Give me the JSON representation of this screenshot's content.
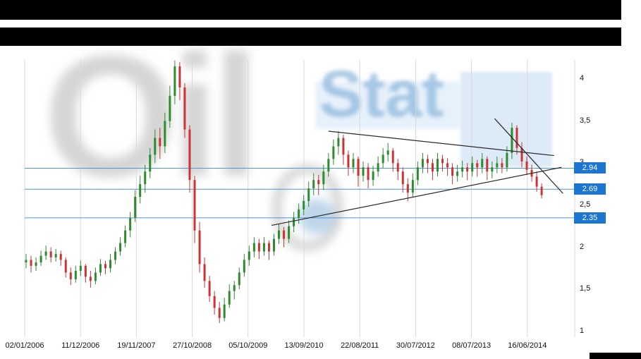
{
  "watermark": {
    "word1": "Oil",
    "word2": "Stat"
  },
  "colors": {
    "candle_up": "#2e8b2e",
    "candle_down": "#cc3333",
    "grid": "#d9d9d9",
    "level_line": "#4f94d6",
    "level_label_background": "#1b75d1",
    "level_label_text": "#ffffff",
    "trendline": "#2a2a2a",
    "axis_text": "#111111",
    "header_bar": "#000000"
  },
  "chart_data": {
    "type": "candlestick",
    "title": "",
    "interval": "monthly",
    "grid": "vertical-only",
    "legend": "none",
    "ylim": [
      1.0,
      4.25
    ],
    "x_tick_labels": [
      "02/01/2006",
      "11/12/2006",
      "19/11/2007",
      "27/10/2008",
      "05/10/2009",
      "13/09/2010",
      "22/08/2011",
      "30/07/2012",
      "08/07/2013",
      "16/06/2014"
    ],
    "y_ticks": [
      {
        "label": "4",
        "value": 4
      },
      {
        "label": "3,5",
        "value": 3.5
      },
      {
        "label": "3",
        "value": 3
      },
      {
        "label": "2,5",
        "value": 2.5
      },
      {
        "label": "2",
        "value": 2
      },
      {
        "label": "1,5",
        "value": 1.5
      },
      {
        "label": "1",
        "value": 1
      }
    ],
    "levels": [
      {
        "label": "2.94",
        "value": 2.94
      },
      {
        "label": "2.69",
        "value": 2.69
      },
      {
        "label": "2.35",
        "value": 2.35
      }
    ],
    "trendlines": [
      {
        "from": {
          "month_index": 61,
          "price": 3.38
        },
        "to": {
          "month_index": 106.5,
          "price": 3.09
        }
      },
      {
        "from": {
          "month_index": 49.5,
          "price": 2.26
        },
        "to": {
          "month_index": 108,
          "price": 2.95
        }
      },
      {
        "from": {
          "month_index": 94.5,
          "price": 3.53
        },
        "to": {
          "month_index": 108.3,
          "price": 2.64
        }
      }
    ],
    "ohlc_columns": [
      "open",
      "high",
      "low",
      "close"
    ],
    "ohlc": [
      [
        1.82,
        1.92,
        1.75,
        1.85
      ],
      [
        1.85,
        1.9,
        1.7,
        1.78
      ],
      [
        1.78,
        1.88,
        1.72,
        1.82
      ],
      [
        1.82,
        1.96,
        1.78,
        1.9
      ],
      [
        1.9,
        2.02,
        1.85,
        1.95
      ],
      [
        1.95,
        2.0,
        1.82,
        1.88
      ],
      [
        1.88,
        1.98,
        1.83,
        1.92
      ],
      [
        1.92,
        1.96,
        1.78,
        1.85
      ],
      [
        1.85,
        1.88,
        1.64,
        1.7
      ],
      [
        1.7,
        1.76,
        1.55,
        1.62
      ],
      [
        1.62,
        1.78,
        1.58,
        1.72
      ],
      [
        1.72,
        1.84,
        1.66,
        1.78
      ],
      [
        1.78,
        1.8,
        1.58,
        1.65
      ],
      [
        1.65,
        1.72,
        1.52,
        1.6
      ],
      [
        1.6,
        1.76,
        1.56,
        1.7
      ],
      [
        1.7,
        1.86,
        1.66,
        1.8
      ],
      [
        1.8,
        1.84,
        1.68,
        1.75
      ],
      [
        1.75,
        1.92,
        1.7,
        1.85
      ],
      [
        1.85,
        2.0,
        1.8,
        1.95
      ],
      [
        1.95,
        2.12,
        1.9,
        2.05
      ],
      [
        2.05,
        2.26,
        2.0,
        2.2
      ],
      [
        2.2,
        2.42,
        2.12,
        2.35
      ],
      [
        2.35,
        2.68,
        2.3,
        2.6
      ],
      [
        2.6,
        2.85,
        2.52,
        2.75
      ],
      [
        2.75,
        2.98,
        2.65,
        2.9
      ],
      [
        2.9,
        3.18,
        2.82,
        3.1
      ],
      [
        3.1,
        3.4,
        3.0,
        3.3
      ],
      [
        3.3,
        3.42,
        3.05,
        3.2
      ],
      [
        3.2,
        3.6,
        3.12,
        3.5
      ],
      [
        3.5,
        3.92,
        3.42,
        3.8
      ],
      [
        3.8,
        4.22,
        3.7,
        4.15
      ],
      [
        4.15,
        4.2,
        3.75,
        3.9
      ],
      [
        3.9,
        3.95,
        3.3,
        3.4
      ],
      [
        3.4,
        3.45,
        2.65,
        2.8
      ],
      [
        2.8,
        2.85,
        2.05,
        2.2
      ],
      [
        2.2,
        2.3,
        1.7,
        1.8
      ],
      [
        1.8,
        1.88,
        1.52,
        1.6
      ],
      [
        1.6,
        1.66,
        1.35,
        1.42
      ],
      [
        1.42,
        1.48,
        1.2,
        1.28
      ],
      [
        1.28,
        1.35,
        1.1,
        1.16
      ],
      [
        1.16,
        1.4,
        1.12,
        1.32
      ],
      [
        1.32,
        1.56,
        1.28,
        1.48
      ],
      [
        1.48,
        1.6,
        1.38,
        1.55
      ],
      [
        1.55,
        1.76,
        1.5,
        1.7
      ],
      [
        1.7,
        1.92,
        1.65,
        1.85
      ],
      [
        1.85,
        2.02,
        1.78,
        1.95
      ],
      [
        1.95,
        2.12,
        1.88,
        2.05
      ],
      [
        2.05,
        2.1,
        1.86,
        1.95
      ],
      [
        1.95,
        2.12,
        1.9,
        2.05
      ],
      [
        2.05,
        2.08,
        1.85,
        1.95
      ],
      [
        1.95,
        2.16,
        1.9,
        2.1
      ],
      [
        2.1,
        2.28,
        2.04,
        2.2
      ],
      [
        2.2,
        2.24,
        2.0,
        2.1
      ],
      [
        2.1,
        2.32,
        2.05,
        2.25
      ],
      [
        2.25,
        2.42,
        2.18,
        2.35
      ],
      [
        2.35,
        2.52,
        2.28,
        2.45
      ],
      [
        2.45,
        2.62,
        2.38,
        2.55
      ],
      [
        2.55,
        2.78,
        2.48,
        2.7
      ],
      [
        2.7,
        2.88,
        2.62,
        2.8
      ],
      [
        2.8,
        2.86,
        2.62,
        2.75
      ],
      [
        2.75,
        2.98,
        2.68,
        2.9
      ],
      [
        2.9,
        3.12,
        2.84,
        3.05
      ],
      [
        3.05,
        3.28,
        2.98,
        3.2
      ],
      [
        3.2,
        3.38,
        3.1,
        3.3
      ],
      [
        3.3,
        3.34,
        2.98,
        3.1
      ],
      [
        3.1,
        3.15,
        2.85,
        2.95
      ],
      [
        2.95,
        3.12,
        2.88,
        3.05
      ],
      [
        3.05,
        3.08,
        2.72,
        2.85
      ],
      [
        2.85,
        3.02,
        2.78,
        2.95
      ],
      [
        2.95,
        3.0,
        2.7,
        2.8
      ],
      [
        2.8,
        2.97,
        2.73,
        2.9
      ],
      [
        2.9,
        3.08,
        2.84,
        3.0
      ],
      [
        3.0,
        3.18,
        2.94,
        3.1
      ],
      [
        3.1,
        3.24,
        3.02,
        3.15
      ],
      [
        3.15,
        3.18,
        2.9,
        3.0
      ],
      [
        3.0,
        3.05,
        2.8,
        2.9
      ],
      [
        2.9,
        2.95,
        2.65,
        2.75
      ],
      [
        2.75,
        2.82,
        2.55,
        2.65
      ],
      [
        2.65,
        2.88,
        2.6,
        2.8
      ],
      [
        2.8,
        3.02,
        2.74,
        2.95
      ],
      [
        2.95,
        3.12,
        2.88,
        3.05
      ],
      [
        3.05,
        3.1,
        2.88,
        3.0
      ],
      [
        3.0,
        3.05,
        2.8,
        2.9
      ],
      [
        2.9,
        3.12,
        2.84,
        3.05
      ],
      [
        3.05,
        3.1,
        2.9,
        3.0
      ],
      [
        3.0,
        3.06,
        2.85,
        2.95
      ],
      [
        2.95,
        3.0,
        2.75,
        2.85
      ],
      [
        2.85,
        2.98,
        2.78,
        2.9
      ],
      [
        2.9,
        3.03,
        2.83,
        2.95
      ],
      [
        2.95,
        3.0,
        2.8,
        2.9
      ],
      [
        2.9,
        3.08,
        2.84,
        3.0
      ],
      [
        3.0,
        3.04,
        2.84,
        2.95
      ],
      [
        2.95,
        3.12,
        2.88,
        3.05
      ],
      [
        3.05,
        3.08,
        2.8,
        2.9
      ],
      [
        2.9,
        3.02,
        2.82,
        2.95
      ],
      [
        2.95,
        3.08,
        2.88,
        3.0
      ],
      [
        3.0,
        3.06,
        2.88,
        2.95
      ],
      [
        2.95,
        3.2,
        2.9,
        3.12
      ],
      [
        3.12,
        3.48,
        3.05,
        3.42
      ],
      [
        3.42,
        3.45,
        3.1,
        3.18
      ],
      [
        3.18,
        3.25,
        2.95,
        3.02
      ],
      [
        3.02,
        3.08,
        2.86,
        2.92
      ],
      [
        2.92,
        2.98,
        2.78,
        2.84
      ],
      [
        2.84,
        2.9,
        2.66,
        2.72
      ],
      [
        2.72,
        2.76,
        2.58,
        2.62
      ]
    ]
  }
}
